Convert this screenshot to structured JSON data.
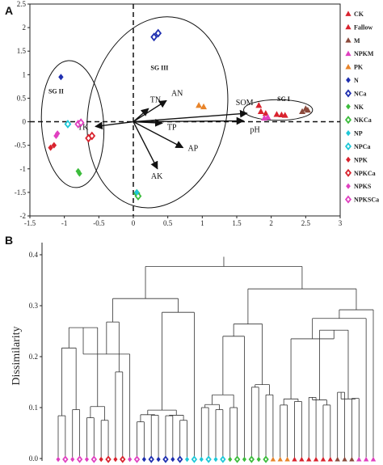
{
  "chart_data": [
    {
      "type": "scatter",
      "panel_label": "A",
      "xlim": [
        -1.5,
        3
      ],
      "ylim": [
        -2,
        2.5
      ],
      "xticks": [
        "-1.5",
        "-1",
        "-0.5",
        "0",
        "0.5",
        "1",
        "1.5",
        "2",
        "2.5",
        "3"
      ],
      "yticks": [
        "-2",
        "-1.5",
        "-1",
        "-0.5",
        "0",
        "0.5",
        "1",
        "1.5",
        "2",
        "2.5"
      ],
      "legend_placement": "right",
      "series": [
        {
          "name": "CK",
          "color": "#d9232e",
          "marker": "triangle",
          "points": [
            [
              1.82,
              0.35
            ],
            [
              1.85,
              0.22
            ],
            [
              1.92,
              0.18
            ]
          ]
        },
        {
          "name": "Fallow",
          "color": "#d9232e",
          "marker": "triangle",
          "points": [
            [
              2.08,
              0.16
            ],
            [
              2.15,
              0.15
            ],
            [
              2.2,
              0.14
            ]
          ]
        },
        {
          "name": "M",
          "color": "#8b4a3c",
          "marker": "triangle",
          "points": [
            [
              2.45,
              0.22
            ],
            [
              2.5,
              0.28
            ],
            [
              2.53,
              0.25
            ]
          ]
        },
        {
          "name": "NPKM",
          "color": "#e040c0",
          "marker": "triangle",
          "points": [
            [
              1.9,
              0.08
            ],
            [
              1.95,
              0.1
            ]
          ]
        },
        {
          "name": "PK",
          "color": "#e8842a",
          "marker": "triangle",
          "points": [
            [
              0.95,
              0.35
            ],
            [
              1.02,
              0.32
            ]
          ]
        },
        {
          "name": "N",
          "color": "#1f2fb0",
          "marker": "diamond",
          "points": [
            [
              -1.05,
              0.95
            ]
          ]
        },
        {
          "name": "NCa",
          "color": "#1f2fb0",
          "marker": "diamond-open",
          "points": [
            [
              0.3,
              1.8
            ],
            [
              0.36,
              1.88
            ]
          ]
        },
        {
          "name": "NK",
          "color": "#3cbc3c",
          "marker": "diamond",
          "points": [
            [
              -0.8,
              -1.05
            ],
            [
              -0.78,
              -1.1
            ]
          ]
        },
        {
          "name": "NKCa",
          "color": "#3cbc3c",
          "marker": "diamond-open",
          "points": [
            [
              0.05,
              -1.52
            ],
            [
              0.07,
              -1.58
            ]
          ]
        },
        {
          "name": "NP",
          "color": "#1ec8d8",
          "marker": "diamond",
          "points": [
            [
              0.05,
              -1.5
            ]
          ]
        },
        {
          "name": "NPCa",
          "color": "#1ec8d8",
          "marker": "diamond-open",
          "points": [
            [
              -0.95,
              -0.05
            ]
          ]
        },
        {
          "name": "NPK",
          "color": "#d9232e",
          "marker": "diamond",
          "points": [
            [
              -1.2,
              -0.55
            ],
            [
              -1.15,
              -0.5
            ]
          ]
        },
        {
          "name": "NPKCa",
          "color": "#d9232e",
          "marker": "diamond-open",
          "points": [
            [
              -0.65,
              -0.35
            ],
            [
              -0.6,
              -0.3
            ]
          ]
        },
        {
          "name": "NPKS",
          "color": "#e040c0",
          "marker": "diamond",
          "points": [
            [
              -1.1,
              -0.25
            ],
            [
              -1.12,
              -0.3
            ]
          ]
        },
        {
          "name": "NPKSCa",
          "color": "#e040c0",
          "marker": "diamond-open",
          "points": [
            [
              -0.8,
              -0.05
            ],
            [
              -0.76,
              -0.02
            ]
          ]
        }
      ],
      "vectors": [
        {
          "name": "SOM",
          "x": 1.65,
          "y": 0.18
        },
        {
          "name": "pH",
          "x": 1.6,
          "y": 0.02
        },
        {
          "name": "AN",
          "x": 0.48,
          "y": 0.45
        },
        {
          "name": "TN",
          "x": 0.22,
          "y": 0.28
        },
        {
          "name": "TP",
          "x": 0.42,
          "y": -0.03
        },
        {
          "name": "AP",
          "x": 0.72,
          "y": -0.55
        },
        {
          "name": "AK",
          "x": 0.35,
          "y": -1.0
        },
        {
          "name": "TK",
          "x": -0.55,
          "y": -0.1
        }
      ],
      "groups": [
        {
          "name": "SG I",
          "center": [
            2.1,
            0.25
          ],
          "rx": 0.5,
          "ry": 0.22
        },
        {
          "name": "SG II",
          "center": [
            -0.88,
            -0.05
          ],
          "rx": 0.45,
          "ry": 1.35
        },
        {
          "name": "SG III",
          "center": [
            0.35,
            0.2
          ],
          "rx": 1.0,
          "ry": 2.05
        }
      ]
    },
    {
      "type": "dendrogram",
      "panel_label": "B",
      "ylabel": "Dissimilarity",
      "ylim": [
        0,
        0.4
      ],
      "yticks": [
        "0.0",
        "0.1",
        "0.2",
        "0.3",
        "0.4"
      ],
      "leaf_colors": [
        "#e040c0",
        "#e040c0",
        "#e040c0",
        "#e040c0",
        "#e040c0",
        "#e040c0",
        "#d9232e",
        "#d9232e",
        "#d9232e",
        "#d9232e",
        "#e040c0",
        "#e040c0",
        "#1f2fb0",
        "#1f2fb0",
        "#1f2fb0",
        "#1f2fb0",
        "#1f2fb0",
        "#1f2fb0",
        "#1ec8d8",
        "#1ec8d8",
        "#1ec8d8",
        "#1ec8d8",
        "#1ec8d8",
        "#1ec8d8",
        "#3cbc3c",
        "#3cbc3c",
        "#3cbc3c",
        "#3cbc3c",
        "#3cbc3c",
        "#3cbc3c",
        "#e8842a",
        "#e8842a",
        "#e8842a",
        "#d9232e",
        "#d9232e",
        "#d9232e",
        "#d9232e",
        "#d9232e",
        "#d9232e",
        "#8b4a3c",
        "#8b4a3c",
        "#8b4a3c",
        "#e040c0",
        "#e040c0",
        "#e040c0"
      ],
      "leaf_markers": [
        "diamond",
        "diamond-open",
        "diamond",
        "diamond-open",
        "diamond",
        "diamond-open",
        "diamond",
        "diamond-open",
        "diamond",
        "diamond-open",
        "diamond",
        "diamond-open",
        "diamond",
        "diamond-open",
        "diamond",
        "diamond-open",
        "diamond",
        "diamond-open",
        "diamond",
        "diamond-open",
        "diamond",
        "diamond-open",
        "diamond",
        "diamond-open",
        "diamond",
        "diamond-open",
        "diamond",
        "diamond-open",
        "diamond",
        "diamond-open",
        "triangle",
        "triangle",
        "triangle",
        "triangle",
        "triangle",
        "triangle",
        "triangle",
        "triangle",
        "triangle",
        "triangle",
        "triangle",
        "triangle",
        "triangle",
        "triangle",
        "triangle"
      ],
      "merges": [
        [
          0,
          1,
          0.084
        ],
        [
          2,
          3,
          0.096
        ],
        [
          45,
          46,
          0.217
        ],
        [
          4,
          5,
          0.08
        ],
        [
          6,
          7,
          0.075
        ],
        [
          48,
          49,
          0.102
        ],
        [
          47,
          50,
          0.257
        ],
        [
          8,
          9,
          0.17
        ],
        [
          51,
          10,
          0.205
        ],
        [
          52,
          53,
          0.268
        ],
        [
          11,
          12,
          0.072
        ],
        [
          13,
          14,
          0.085
        ],
        [
          55,
          56,
          0.086
        ],
        [
          15,
          16,
          0.084
        ],
        [
          17,
          18,
          0.075
        ],
        [
          58,
          59,
          0.085
        ],
        [
          57,
          60,
          0.095
        ],
        [
          61,
          19,
          0.287
        ],
        [
          54,
          62,
          0.314
        ],
        [
          20,
          21,
          0.1
        ],
        [
          22,
          23,
          0.096
        ],
        [
          64,
          65,
          0.106
        ],
        [
          24,
          25,
          0.1
        ],
        [
          66,
          67,
          0.125
        ],
        [
          68,
          26,
          0.24
        ],
        [
          27,
          28,
          0.14
        ],
        [
          29,
          30,
          0.125
        ],
        [
          70,
          71,
          0.145
        ],
        [
          69,
          72,
          0.264
        ],
        [
          31,
          32,
          0.105
        ],
        [
          33,
          34,
          0.112
        ],
        [
          74,
          75,
          0.117
        ],
        [
          35,
          36,
          0.12
        ],
        [
          37,
          38,
          0.105
        ],
        [
          77,
          78,
          0.115
        ],
        [
          39,
          40,
          0.13
        ],
        [
          41,
          42,
          0.118
        ],
        [
          80,
          81,
          0.117
        ],
        [
          79,
          82,
          0.252
        ],
        [
          76,
          83,
          0.235
        ],
        [
          84,
          43,
          0.275
        ],
        [
          44,
          85,
          0.292
        ],
        [
          73,
          86,
          0.333
        ],
        [
          63,
          87,
          0.377
        ]
      ]
    }
  ]
}
